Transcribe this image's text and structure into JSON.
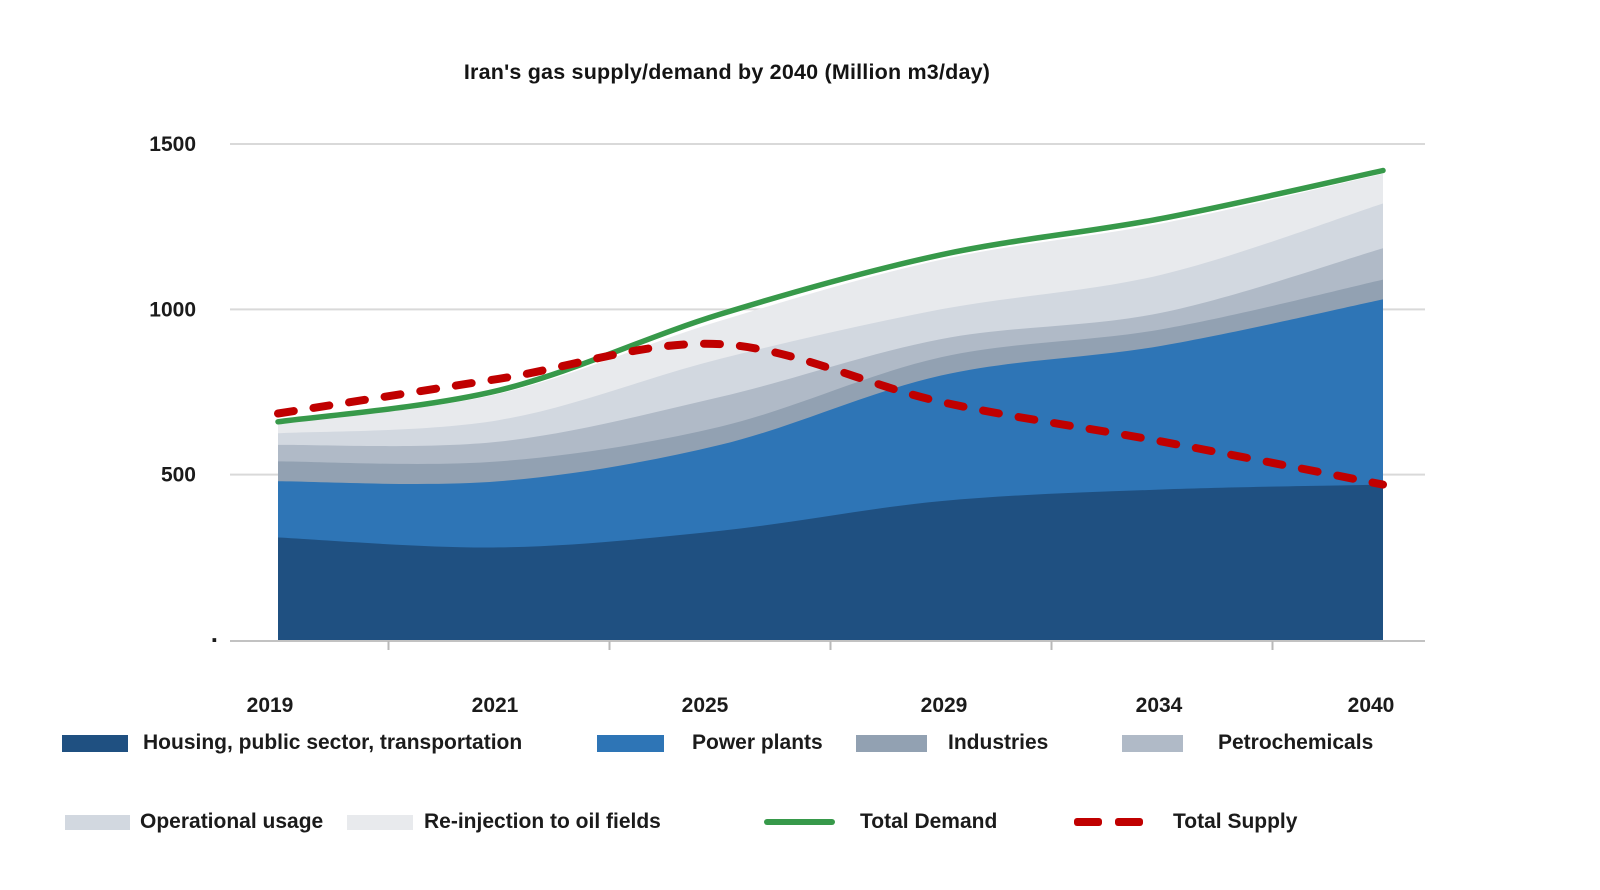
{
  "title": "Iran's gas supply/demand by 2040 (Million m3/day)",
  "chart_data": {
    "type": "area",
    "stacked": true,
    "unit": "Million m3/day",
    "categories": [
      "2019",
      "2021",
      "2025",
      "2029",
      "2034",
      "2040"
    ],
    "series": [
      {
        "name": "Housing, public sector, transportation",
        "color": "#1f5081",
        "values": [
          310,
          280,
          330,
          420,
          455,
          470
        ]
      },
      {
        "name": "Power plants",
        "color": "#2e75b6",
        "values": [
          170,
          200,
          260,
          380,
          435,
          560
        ]
      },
      {
        "name": "Industries",
        "color": "#92a1b2",
        "values": [
          60,
          60,
          55,
          55,
          50,
          60
        ]
      },
      {
        "name": "Petrochemicals",
        "color": "#b0bac7",
        "values": [
          50,
          60,
          90,
          55,
          50,
          95
        ]
      },
      {
        "name": "Operational usage",
        "color": "#d2d8e0",
        "values": [
          35,
          65,
          115,
          90,
          115,
          135
        ]
      },
      {
        "name": "Re-injection to oil fields",
        "color": "#e8eaed",
        "values": [
          30,
          80,
          115,
          150,
          155,
          90
        ]
      }
    ],
    "lines": [
      {
        "name": "Total Demand",
        "color": "#37994a",
        "style": "solid",
        "values": [
          660,
          755,
          985,
          1165,
          1275,
          1420
        ]
      },
      {
        "name": "Total Supply",
        "color": "#c00000",
        "style": "dashed",
        "values": [
          685,
          790,
          895,
          720,
          600,
          470
        ]
      }
    ],
    "xlabel": "",
    "ylabel": "",
    "ylim": [
      0,
      1500
    ],
    "yticks": [
      {
        "value": 0,
        "label": "."
      },
      {
        "value": 500,
        "label": "500"
      },
      {
        "value": 1000,
        "label": "1000"
      },
      {
        "value": 1500,
        "label": "1500"
      }
    ],
    "grid": true,
    "legend_position": "bottom"
  },
  "colors": {
    "background": "#ffffff",
    "gridline": "#d9d9d9",
    "axis_line": "#c2c2c2",
    "tick": "#b9b9b9",
    "text": "#1b1b1b"
  }
}
